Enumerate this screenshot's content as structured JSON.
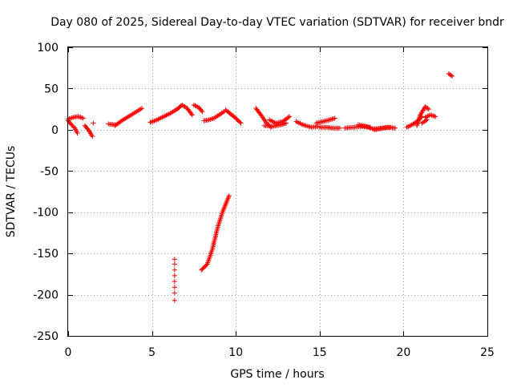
{
  "chart_data": {
    "type": "scatter",
    "title": "Day 080 of 2025, Sidereal Day-to-day VTEC variation (SDTVAR) for receiver bndr",
    "xlabel": "GPS time / hours",
    "ylabel": "SDTVAR / TECUs",
    "xlim": [
      0,
      25
    ],
    "ylim": [
      -250,
      100
    ],
    "xticks": [
      0,
      5,
      10,
      15,
      20,
      25
    ],
    "yticks": [
      -250,
      -200,
      -150,
      -100,
      -50,
      0,
      50,
      100
    ],
    "grid": true,
    "marker": "+",
    "series": [
      {
        "name": "SDTVAR",
        "color": "#ff0000",
        "tracks": [
          {
            "x": [
              0.0,
              0.3,
              0.6,
              0.9
            ],
            "y": [
              13,
              15,
              16,
              14
            ]
          },
          {
            "x": [
              0.0,
              0.2,
              0.4,
              0.55
            ],
            "y": [
              11,
              6,
              2,
              -4
            ]
          },
          {
            "x": [
              1.0,
              1.2,
              1.45
            ],
            "y": [
              5,
              0,
              -8
            ]
          },
          {
            "x": [
              1.5
            ],
            "y": [
              8
            ]
          },
          {
            "x": [
              2.4,
              2.8
            ],
            "y": [
              7,
              6
            ]
          },
          {
            "x": [
              2.8,
              3.2,
              3.6,
              4.0,
              4.4
            ],
            "y": [
              5,
              11,
              16,
              21,
              26
            ]
          },
          {
            "x": [
              4.9,
              5.3,
              5.7,
              6.1,
              6.5
            ],
            "y": [
              9,
              12,
              16,
              20,
              25
            ]
          },
          {
            "x": [
              6.5,
              6.8,
              7.1,
              7.4
            ],
            "y": [
              25,
              30,
              26,
              18
            ]
          },
          {
            "x": [
              7.5,
              7.8,
              8.0
            ],
            "y": [
              30,
              27,
              22
            ]
          },
          {
            "x": [
              8.1,
              8.4,
              8.7,
              9.0,
              9.3
            ],
            "y": [
              11,
              12,
              14,
              18,
              22
            ]
          },
          {
            "x": [
              9.4,
              9.7,
              10.0,
              10.3
            ],
            "y": [
              24,
              19,
              14,
              8
            ]
          },
          {
            "x": [
              7.95,
              8.3,
              8.6,
              8.9,
              9.2,
              9.6
            ],
            "y": [
              -170,
              -163,
              -145,
              -120,
              -100,
              -80
            ]
          },
          {
            "x": [
              6.35,
              6.35,
              6.35,
              6.35,
              6.35,
              6.35,
              6.35,
              6.35
            ],
            "y": [
              -157,
              -163,
              -170,
              -177,
              -184,
              -191,
              -198,
              -207
            ]
          },
          {
            "x": [
              11.2,
              11.5,
              11.8,
              12.1
            ],
            "y": [
              26,
              18,
              9,
              3
            ]
          },
          {
            "x": [
              12.0,
              12.4,
              12.8,
              13.2
            ],
            "y": [
              12,
              8,
              10,
              16
            ]
          },
          {
            "x": [
              11.7,
              12.2,
              12.7,
              13.0
            ],
            "y": [
              5,
              4,
              6,
              8
            ]
          },
          {
            "x": [
              13.6,
              14.0,
              14.5,
              14.9
            ],
            "y": [
              10,
              6,
              3,
              4
            ]
          },
          {
            "x": [
              14.8,
              15.2,
              15.6,
              15.9
            ],
            "y": [
              8,
              10,
              12,
              14
            ]
          },
          {
            "x": [
              15.0,
              15.4,
              15.8,
              16.2
            ],
            "y": [
              3,
              3,
              2,
              2
            ]
          },
          {
            "x": [
              16.5,
              17.0,
              17.5,
              18.0
            ],
            "y": [
              2,
              3,
              4,
              3
            ]
          },
          {
            "x": [
              17.3,
              17.8,
              18.3,
              18.8,
              19.2
            ],
            "y": [
              6,
              4,
              0,
              2,
              3
            ]
          },
          {
            "x": [
              18.2,
              18.7,
              19.1,
              19.5
            ],
            "y": [
              1,
              2,
              3,
              2
            ]
          },
          {
            "x": [
              20.2,
              20.5,
              20.8,
              21.1
            ],
            "y": [
              3,
              6,
              10,
              16
            ]
          },
          {
            "x": [
              20.8,
              21.0,
              21.3,
              21.5
            ],
            "y": [
              5,
              18,
              28,
              25
            ]
          },
          {
            "x": [
              21.3,
              21.6,
              21.9
            ],
            "y": [
              15,
              18,
              16
            ]
          },
          {
            "x": [
              21.1,
              21.4
            ],
            "y": [
              8,
              12
            ]
          },
          {
            "x": [
              22.7,
              22.9
            ],
            "y": [
              68,
              65
            ]
          }
        ]
      }
    ]
  }
}
